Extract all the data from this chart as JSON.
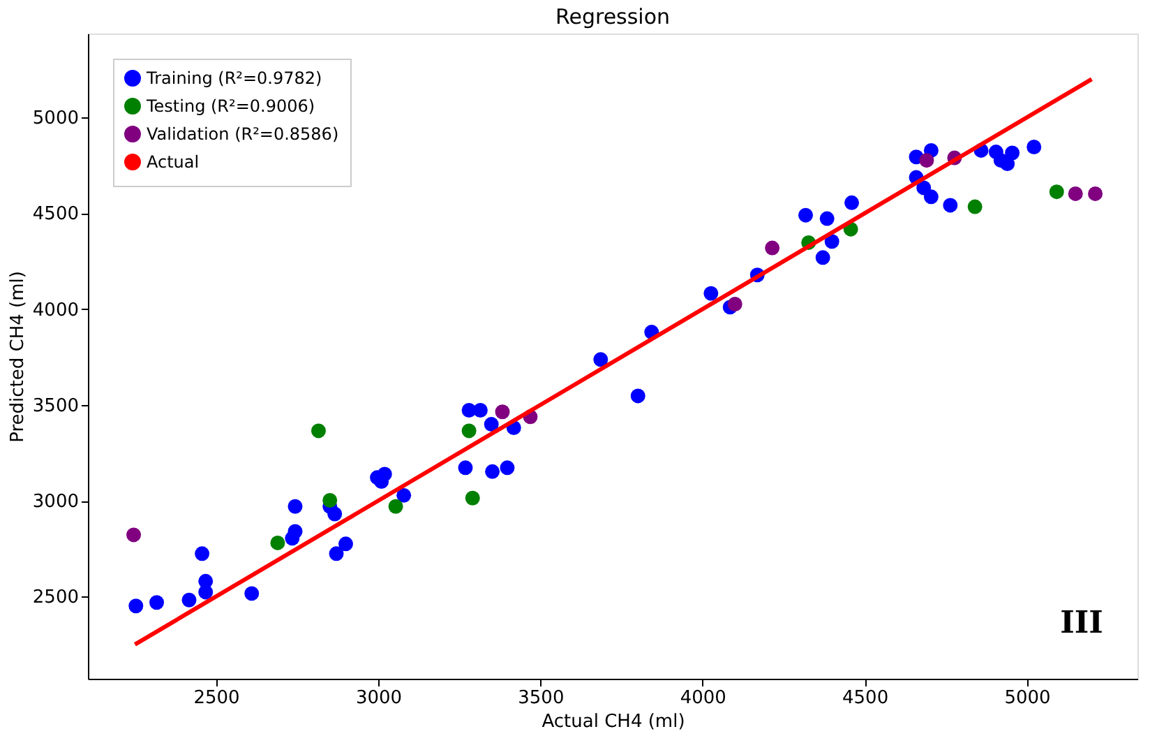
{
  "chart_data": {
    "type": "scatter",
    "title": "Regression",
    "xlabel": "Actual CH4 (ml)",
    "ylabel": "Predicted CH4 (ml)",
    "xlim": [
      2105,
      5341
    ],
    "ylim": [
      2071,
      5438
    ],
    "xticks": [
      2500,
      3000,
      3500,
      4000,
      4500,
      5000
    ],
    "yticks": [
      2500,
      3000,
      3500,
      4000,
      4500,
      5000
    ],
    "grid": false,
    "legend": "top left",
    "marker": "circle",
    "annotations": [
      "III"
    ],
    "series": [
      {
        "name": "Training (R²=0.9782)",
        "color": "#0000ff",
        "x": [
          2253,
          2317,
          2417,
          2468,
          2468,
          2457,
          2610,
          2744,
          2744,
          2735,
          2851,
          2866,
          2871,
          2900,
          2997,
          3020,
          3010,
          3079,
          3280,
          3315,
          3349,
          3418,
          3269,
          3352,
          3398,
          3686,
          3801,
          3843,
          4026,
          4085,
          4169,
          4318,
          4384,
          4460,
          4399,
          4371,
          4659,
          4705,
          4659,
          4682,
          4705,
          4764,
          4859,
          4905,
          4920,
          4940,
          4955,
          5022
        ],
        "values": [
          2451,
          2469,
          2482,
          2523,
          2580,
          2724,
          2516,
          2970,
          2840,
          2804,
          2970,
          2931,
          2724,
          2775,
          3121,
          3139,
          3100,
          3028,
          3472,
          3472,
          3399,
          3381,
          3172,
          3152,
          3172,
          3737,
          3547,
          3880,
          4082,
          4010,
          4178,
          4490,
          4472,
          4555,
          4353,
          4269,
          4794,
          4828,
          4687,
          4633,
          4586,
          4542,
          4828,
          4820,
          4776,
          4758,
          4815,
          4846
        ]
      },
      {
        "name": "Testing (R²=0.9006)",
        "color": "#008000",
        "x": [
          2816,
          2690,
          2851,
          3054,
          3280,
          3291,
          4327,
          4457,
          4840,
          5092
        ],
        "values": [
          3365,
          2780,
          3002,
          2970,
          3365,
          3014,
          4347,
          4417,
          4534,
          4612
        ]
      },
      {
        "name": "Validation (R²=0.8586)",
        "color": "#800080",
        "x": [
          2246,
          3383,
          3469,
          4215,
          4100,
          4691,
          4777,
          5150,
          5211
        ],
        "values": [
          2822,
          3464,
          3438,
          4319,
          4026,
          4776,
          4789,
          4602,
          4602
        ]
      },
      {
        "name": "Actual",
        "type": "line",
        "marker": "none",
        "color": "#ff0000",
        "x": [
          2250,
          5200
        ],
        "values": [
          2250,
          5200
        ]
      }
    ]
  }
}
